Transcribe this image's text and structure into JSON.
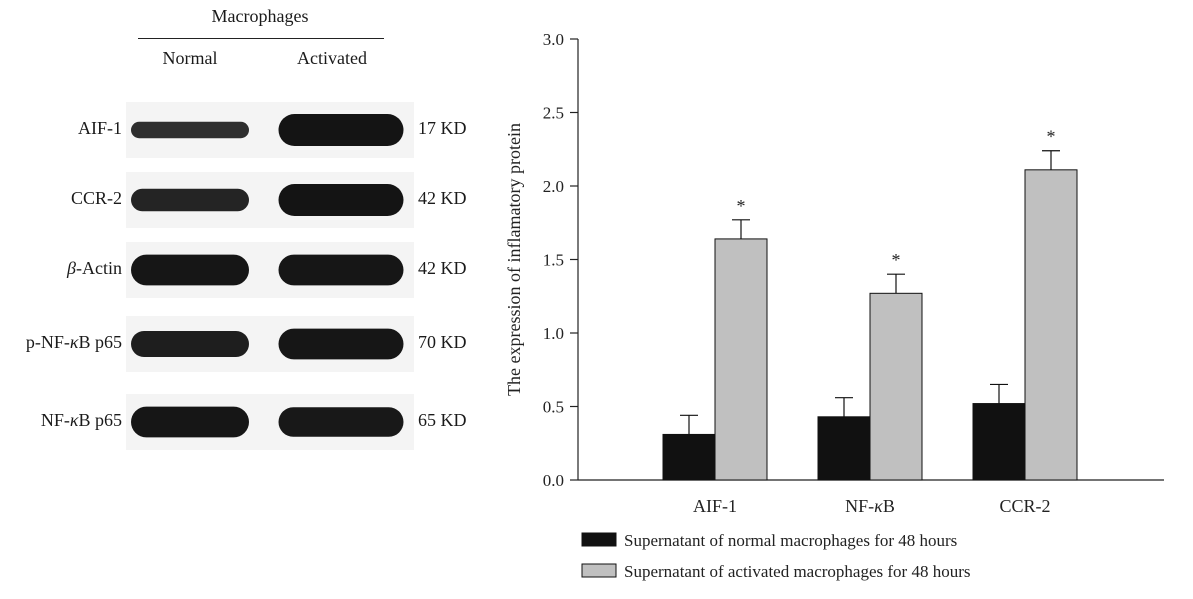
{
  "blot": {
    "title": "Macrophages",
    "columns": [
      "Normal",
      "Activated"
    ],
    "rows": [
      {
        "label_pre": "",
        "label_greek": "",
        "label_post": "AIF-1",
        "size": "17 KD",
        "normal_intensity": 0.35,
        "activated_intensity": 1.0
      },
      {
        "label_pre": "",
        "label_greek": "",
        "label_post": "CCR-2",
        "size": "42 KD",
        "normal_intensity": 0.6,
        "activated_intensity": 1.0
      },
      {
        "label_pre": "",
        "label_greek": "β",
        "label_post": "-Actin",
        "size": "42 KD",
        "normal_intensity": 0.95,
        "activated_intensity": 0.95
      },
      {
        "label_pre": "p-NF-",
        "label_greek": "κ",
        "label_post": "B p65",
        "size": "70 KD",
        "normal_intensity": 0.75,
        "activated_intensity": 0.95
      },
      {
        "label_pre": "NF-",
        "label_greek": "κ",
        "label_post": "B p65",
        "size": "65 KD",
        "normal_intensity": 0.95,
        "activated_intensity": 0.9
      }
    ]
  },
  "chart_data": {
    "type": "bar",
    "ylabel": "The expression of inflamatory protein",
    "ylim": [
      0,
      3.0
    ],
    "yticks": [
      "0.0",
      "0.5",
      "1.0",
      "1.5",
      "2.0",
      "2.5",
      "3.0"
    ],
    "categories": [
      {
        "pre": "AIF-1",
        "greek": "",
        "post": ""
      },
      {
        "pre": "NF-",
        "greek": "κ",
        "post": "B"
      },
      {
        "pre": "CCR-2",
        "greek": "",
        "post": ""
      }
    ],
    "series": [
      {
        "name": "Supernatant of normal macrophages for 48 hours",
        "color": "#111111",
        "values": [
          0.31,
          0.43,
          0.52
        ],
        "errors": [
          0.13,
          0.13,
          0.13
        ],
        "marks": [
          "",
          "",
          ""
        ]
      },
      {
        "name": "Supernatant of activated macrophages for 48 hours",
        "color": "#c0c0c0",
        "values": [
          1.64,
          1.27,
          2.11
        ],
        "errors": [
          0.13,
          0.13,
          0.13
        ],
        "marks": [
          "*",
          "*",
          "*"
        ]
      }
    ],
    "legend_position": "bottom"
  }
}
